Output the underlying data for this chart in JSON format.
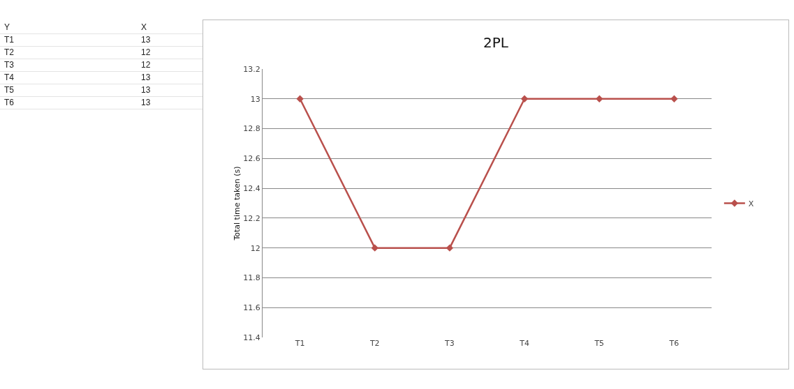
{
  "chart_data": [
    {
      "type": "other",
      "annotations": [
        "Y",
        "X",
        "T1",
        "13",
        "T2",
        "12",
        "T3",
        "12",
        "T4",
        "13",
        "T5",
        "13",
        "T6",
        "13"
      ]
    },
    {
      "type": "line",
      "title": "2PL",
      "ylabel": "Total time taken (s)",
      "categories": [
        "T1",
        "T2",
        "T3",
        "T4",
        "T5",
        "T6"
      ],
      "series": [
        {
          "name": "X",
          "color": "#b9504c",
          "values": [
            13,
            12,
            12,
            13,
            13,
            13
          ]
        }
      ],
      "ylim": [
        11.4,
        13.2
      ],
      "yticks": [
        11.4,
        11.6,
        11.8,
        12,
        12.2,
        12.4,
        12.6,
        12.8,
        13,
        13.2
      ],
      "grid": "y",
      "legend": "right",
      "marker": "diamond",
      "line_style": "solid"
    }
  ]
}
